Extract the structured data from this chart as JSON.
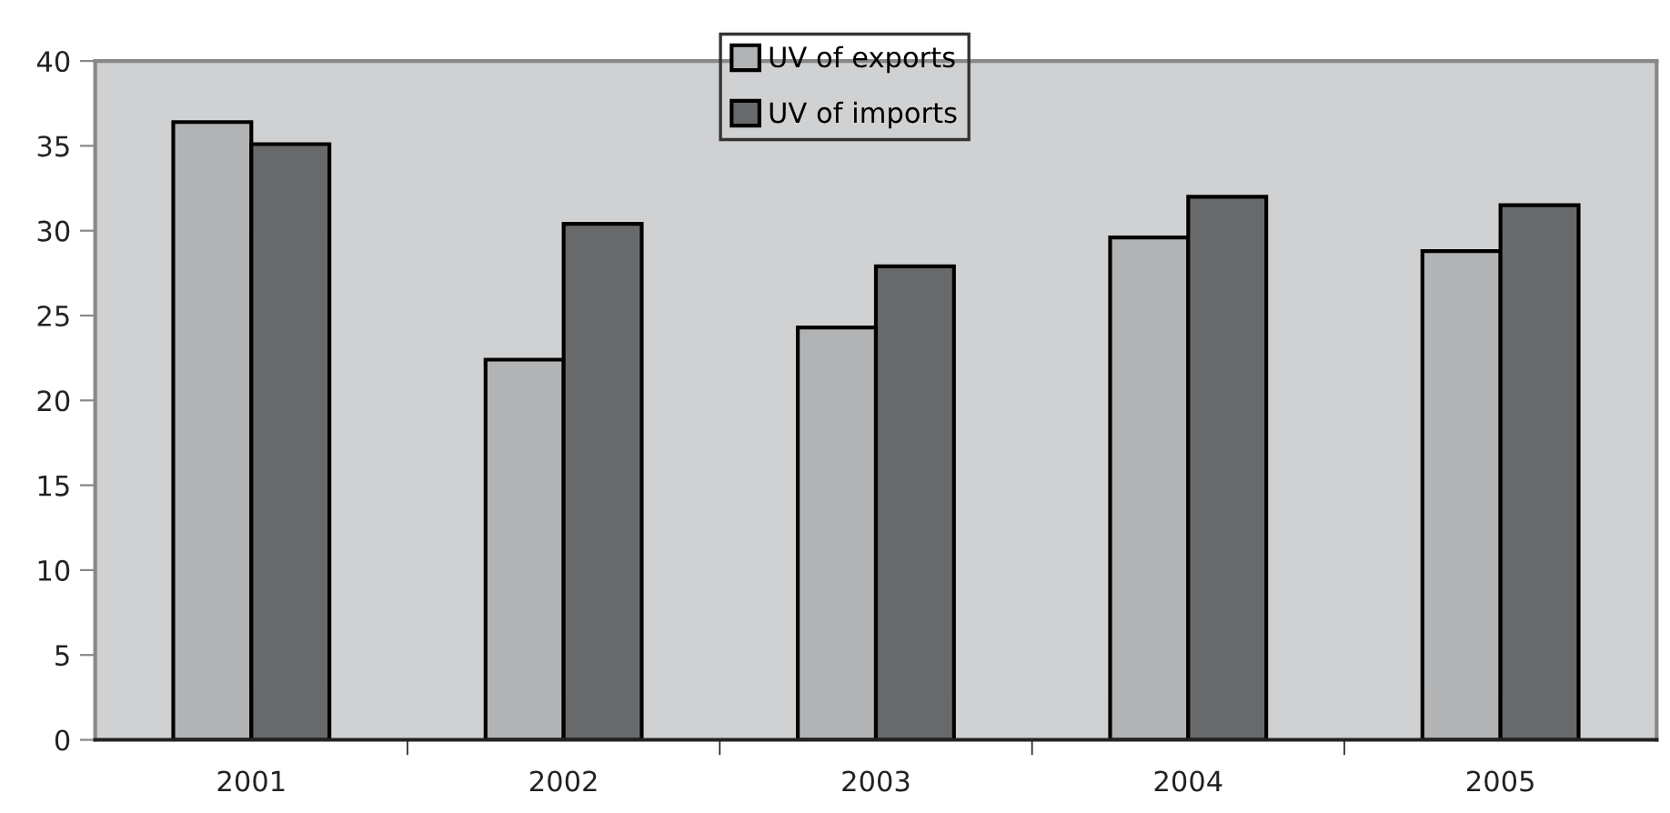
{
  "chart_data": {
    "type": "bar",
    "categories": [
      "2001",
      "2002",
      "2003",
      "2004",
      "2005"
    ],
    "series": [
      {
        "name": "UV of exports",
        "color": "#b2b3b5",
        "values": [
          36.4,
          22.4,
          24.3,
          29.6,
          28.8
        ]
      },
      {
        "name": "UV of imports",
        "color": "#68696b",
        "values": [
          35.1,
          30.4,
          27.9,
          32.0,
          31.5
        ]
      }
    ],
    "ylim": [
      0,
      40
    ],
    "yticks": [
      0,
      5,
      10,
      15,
      20,
      25,
      30,
      35,
      40
    ],
    "grid": false,
    "legend": "top"
  }
}
